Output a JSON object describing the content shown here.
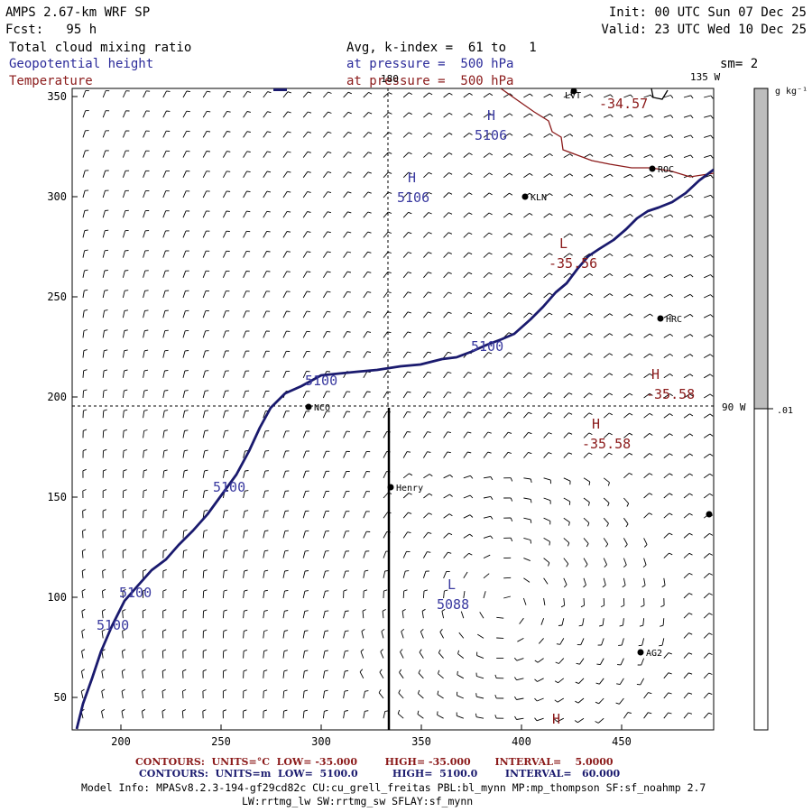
{
  "header": {
    "model": "AMPS 2.67-km WRF SP",
    "init": "Init: 00 UTC Sun 07 Dec 25",
    "fcst": "Fcst:   95 h",
    "valid": "Valid: 23 UTC Wed 10 Dec 25",
    "field1": "Total cloud mixing ratio",
    "field1_info": "Avg, k-index =  61 to   1",
    "field2": "Geopotential height",
    "field2_info": "at pressure =  500 hPa",
    "field2_sm": "sm= 2",
    "field3": "Temperature",
    "field3_info": "at pressure =  500 hPa"
  },
  "map": {
    "x_ticks": [
      "200",
      "250",
      "300",
      "350",
      "400",
      "450"
    ],
    "y_ticks": [
      "350",
      "300",
      "250",
      "200",
      "150",
      "100",
      "50"
    ],
    "longitude_labels": {
      "top_180": "180",
      "top_135w": "135 W",
      "right_90w": "90 W"
    },
    "stations": [
      "LVT",
      "ROC",
      "KLN",
      "HRC",
      "NCO",
      "Henry",
      "AG2"
    ],
    "height_labels": {
      "h1": "H",
      "h1_val": "5106",
      "h2": "H",
      "h2_val": "5106",
      "l1": "L",
      "l1_val": "5088",
      "c1": "5100",
      "c2": "5100",
      "c3": "5100",
      "c4": "5100",
      "c5": "5100"
    },
    "temp_labels": {
      "t1": "-34.57",
      "t2": "L",
      "t2_val": "-35.56",
      "t3": "H",
      "t3_val": "-35.58",
      "t4": "H",
      "t4_val": "-35.58",
      "t5": "H"
    }
  },
  "colorbar": {
    "unit": "g kg⁻¹",
    "tick": ".01"
  },
  "footer": {
    "red_line": "CONTOURS:  UNITS=°C  LOW= -35.000        HIGH= -35.000       INTERVAL=    5.0000",
    "blue_line": "CONTOURS:  UNITS=m  LOW=  5100.0          HIGH=  5100.0        INTERVAL=   60.000",
    "model_info1": "Model Info: MPASv8.2.3-194-gf29cd82c CU:cu_grell_freitas PBL:bl_mynn MP:mp_thompson SF:sf_noahmp 2.7",
    "model_info2": "LW:rrtmg_lw SW:rrtmg_sw SFLAY:sf_mynn"
  },
  "colors": {
    "height": "#1a1a6e",
    "temperature": "#8b1a1a",
    "colorbar_fill": "#bdbdbd"
  }
}
